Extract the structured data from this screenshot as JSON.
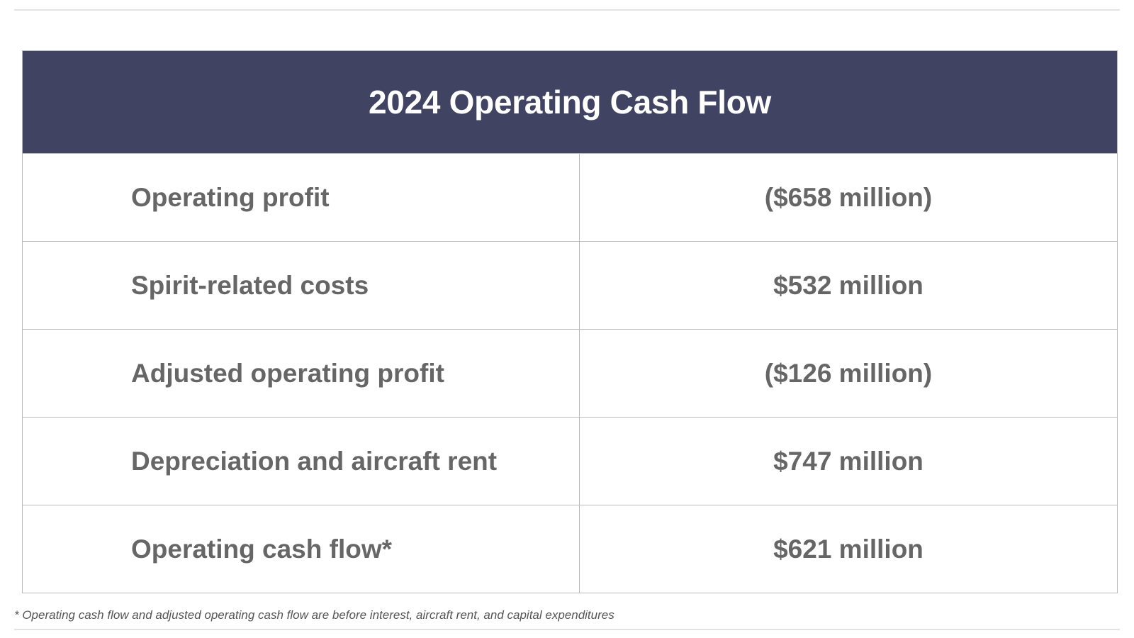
{
  "table": {
    "title": "2024 Operating Cash Flow",
    "rows": [
      {
        "label": "Operating profit",
        "value": "($658 million)"
      },
      {
        "label": "Spirit-related costs",
        "value": "$532 million"
      },
      {
        "label": "Adjusted operating profit",
        "value": "($126 million)"
      },
      {
        "label": "Depreciation and aircraft rent",
        "value": "$747 million"
      },
      {
        "label": "Operating cash flow*",
        "value": "$621 million"
      }
    ]
  },
  "footnote": "* Operating cash flow and adjusted operating cash flow are before interest, aircraft rent, and capital expenditures",
  "colors": {
    "header_background": "#404462",
    "header_text": "#ffffff",
    "body_text": "#666666",
    "grid_lines": "#b9b9b9"
  }
}
